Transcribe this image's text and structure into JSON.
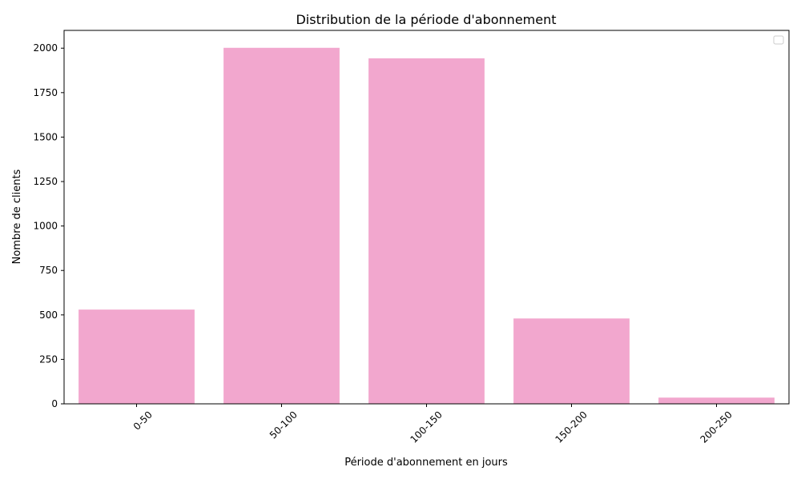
{
  "chart_data": {
    "type": "bar",
    "title": "Distribution de la période d'abonnement",
    "xlabel": "Période d'abonnement en jours",
    "ylabel": "Nombre de clients",
    "categories": [
      "0-50",
      "50-100",
      "100-150",
      "150-200",
      "200-250"
    ],
    "values": [
      530,
      2002,
      1943,
      480,
      35
    ],
    "ylim": [
      0,
      2100
    ],
    "yticks": [
      "0",
      "250",
      "500",
      "750",
      "1000",
      "1250",
      "1500",
      "1750",
      "2000"
    ],
    "bar_color": "#f2a7ce",
    "grid": false,
    "legend": {
      "placement": "top-right",
      "entries": []
    }
  }
}
